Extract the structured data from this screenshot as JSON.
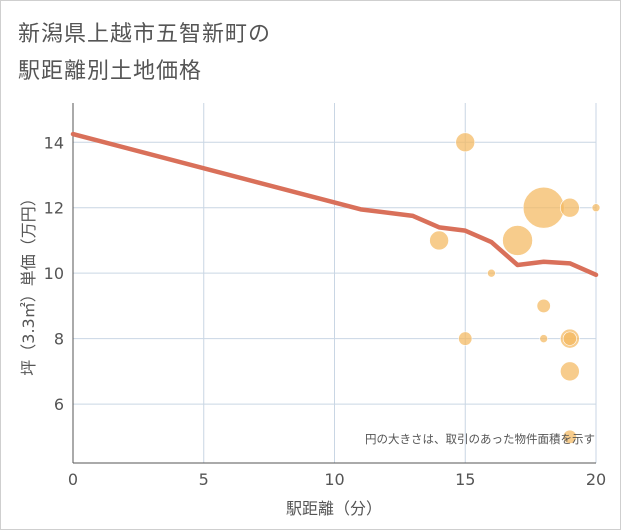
{
  "chart_data": {
    "type": "scatter",
    "title_lines": [
      "新潟県上越市五智新町の",
      "駅距離別土地価格"
    ],
    "xlabel": "駅距離（分）",
    "ylabel": "坪（3.3㎡）単価（万円）",
    "xlim": [
      0,
      20
    ],
    "ylim": [
      4.2,
      15.2
    ],
    "xticks": [
      0,
      5,
      10,
      15,
      20
    ],
    "yticks": [
      6,
      8,
      10,
      12,
      14
    ],
    "grid": true,
    "note": "円の大きさは、取引のあった物件面積を示す",
    "line_series": {
      "name": "trend",
      "color": "#d9705a",
      "x": [
        0,
        11,
        13,
        14,
        15,
        16,
        17,
        18,
        19,
        20
      ],
      "y": [
        14.25,
        11.95,
        11.75,
        11.4,
        11.3,
        10.95,
        10.25,
        10.35,
        10.3,
        9.95
      ]
    },
    "bubble_series": {
      "name": "transactions",
      "color": "#f4b860",
      "points": [
        {
          "x": 15,
          "y": 14.0,
          "size": 3
        },
        {
          "x": 18,
          "y": 12.0,
          "size": 7
        },
        {
          "x": 19,
          "y": 12.0,
          "size": 3
        },
        {
          "x": 20,
          "y": 12.0,
          "size": 1
        },
        {
          "x": 14,
          "y": 11.0,
          "size": 3
        },
        {
          "x": 17,
          "y": 11.0,
          "size": 5
        },
        {
          "x": 16,
          "y": 10.0,
          "size": 1
        },
        {
          "x": 18,
          "y": 9.0,
          "size": 2
        },
        {
          "x": 15,
          "y": 8.0,
          "size": 2
        },
        {
          "x": 18,
          "y": 8.0,
          "size": 1
        },
        {
          "x": 19,
          "y": 8.0,
          "size": 3
        },
        {
          "x": 19,
          "y": 8.0,
          "size": 2
        },
        {
          "x": 19,
          "y": 7.0,
          "size": 3
        },
        {
          "x": 19,
          "y": 5.0,
          "size": 2
        }
      ]
    }
  }
}
